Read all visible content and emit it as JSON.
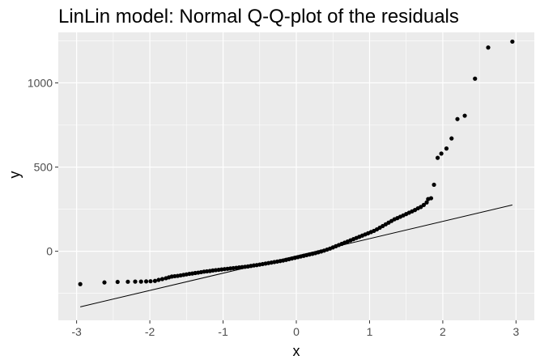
{
  "chart_data": {
    "type": "scatter",
    "title": "LinLin model: Normal Q-Q-plot of the residuals",
    "xlabel": "x",
    "ylabel": "y",
    "xlim": [
      -3.25,
      3.25
    ],
    "ylim": [
      -410,
      1300
    ],
    "x_ticks": [
      -3,
      -2,
      -1,
      0,
      1,
      2,
      3
    ],
    "x_tick_labels": [
      "-3",
      "-2",
      "-1",
      "0",
      "1",
      "2",
      "3"
    ],
    "y_ticks": [
      0,
      500,
      1000
    ],
    "y_tick_labels": [
      "0",
      "500",
      "1000"
    ],
    "grid": true,
    "background": "#ebebeb",
    "point_color": "#000000",
    "reference_line": {
      "x": [
        -2.95,
        2.95
      ],
      "y": [
        -330,
        275
      ]
    },
    "points": {
      "x": [
        -2.95,
        -2.62,
        -2.44,
        -2.3,
        -2.2,
        -2.12,
        -2.05,
        -1.99,
        -1.93,
        -1.88,
        -1.83,
        -1.78,
        -1.74,
        -1.7,
        -1.66,
        -1.62,
        -1.58,
        -1.54,
        -1.5,
        -1.46,
        -1.42,
        -1.38,
        -1.34,
        -1.3,
        -1.26,
        -1.22,
        -1.18,
        -1.14,
        -1.1,
        -1.06,
        -1.02,
        -0.98,
        -0.94,
        -0.9,
        -0.86,
        -0.82,
        -0.78,
        -0.74,
        -0.7,
        -0.66,
        -0.62,
        -0.58,
        -0.54,
        -0.5,
        -0.46,
        -0.42,
        -0.38,
        -0.34,
        -0.3,
        -0.26,
        -0.22,
        -0.18,
        -0.14,
        -0.1,
        -0.06,
        -0.02,
        0.02,
        0.06,
        0.1,
        0.14,
        0.18,
        0.22,
        0.26,
        0.3,
        0.34,
        0.38,
        0.42,
        0.46,
        0.5,
        0.54,
        0.58,
        0.62,
        0.66,
        0.7,
        0.74,
        0.78,
        0.82,
        0.86,
        0.9,
        0.94,
        0.98,
        1.02,
        1.06,
        1.1,
        1.14,
        1.18,
        1.22,
        1.26,
        1.3,
        1.34,
        1.38,
        1.42,
        1.46,
        1.5,
        1.54,
        1.58,
        1.62,
        1.66,
        1.7,
        1.74,
        1.78,
        1.8,
        1.84,
        1.88,
        1.93,
        1.98,
        2.05,
        2.12,
        2.2,
        2.3,
        2.44,
        2.62,
        2.95
      ],
      "y": [
        -195,
        -185,
        -182,
        -181,
        -180,
        -180,
        -179,
        -178,
        -176,
        -170,
        -165,
        -160,
        -155,
        -150,
        -148,
        -146,
        -143,
        -140,
        -137,
        -134,
        -132,
        -129,
        -127,
        -124,
        -121,
        -119,
        -117,
        -114,
        -112,
        -110,
        -108,
        -106,
        -104,
        -102,
        -100,
        -98,
        -96,
        -94,
        -92,
        -90,
        -87,
        -84,
        -82,
        -79,
        -76,
        -73,
        -70,
        -67,
        -64,
        -61,
        -58,
        -55,
        -51,
        -47,
        -43,
        -39,
        -35,
        -31,
        -27,
        -23,
        -19,
        -15,
        -11,
        -6,
        -1,
        4,
        10,
        16,
        23,
        30,
        37,
        44,
        51,
        58,
        65,
        72,
        79,
        86,
        93,
        100,
        107,
        114,
        121,
        130,
        140,
        150,
        160,
        170,
        180,
        190,
        197,
        205,
        213,
        221,
        229,
        237,
        245,
        255,
        263,
        275,
        290,
        310,
        315,
        395,
        555,
        580,
        610,
        670,
        785,
        805,
        1025,
        1210,
        1245
      ]
    }
  }
}
